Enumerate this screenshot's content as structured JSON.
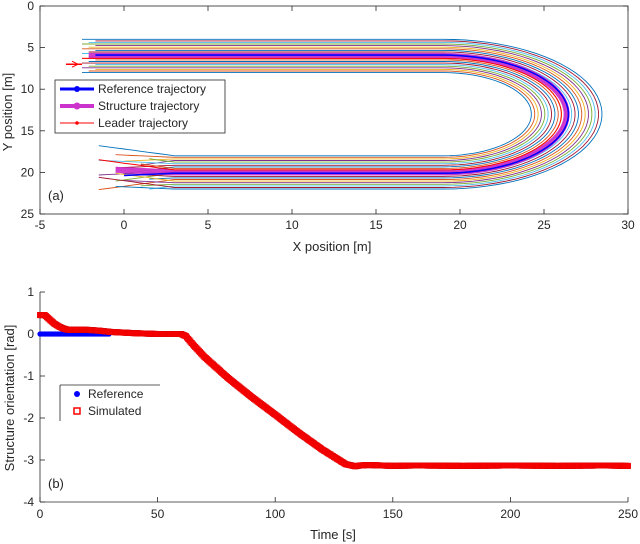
{
  "chart_data": [
    {
      "id": "top",
      "type": "line",
      "panel_label": "(a)",
      "xlabel": "X position [m]",
      "ylabel": "Y position [m]",
      "xlim": [
        -5,
        30
      ],
      "ylim": [
        0,
        25
      ],
      "y_reversed": true,
      "xticks": [
        -5,
        0,
        5,
        10,
        15,
        20,
        25,
        30
      ],
      "yticks": [
        0,
        5,
        10,
        15,
        20,
        25
      ],
      "legend_position": "left",
      "legend": [
        {
          "key": "reference",
          "label": "Reference trajectory",
          "color": "#0000ff"
        },
        {
          "key": "structure",
          "label": "Structure trajectory",
          "color": "#cc33cc"
        },
        {
          "key": "leader",
          "label": "Leader trajectory",
          "color": "#ff0000"
        }
      ],
      "track": {
        "x_left_top": -2.5,
        "x_left_bottom": 1,
        "x_turn_start": 19,
        "y_top": 6,
        "y_bottom": 20,
        "turn_center_y": 13,
        "turn_radius": 7
      },
      "band": {
        "count": 22,
        "half_width_m": 2.0
      },
      "band_colors": [
        "#0072bd",
        "#d95319",
        "#edb120",
        "#7e2f8e",
        "#77ac30",
        "#4dbeee",
        "#a2142f"
      ]
    },
    {
      "id": "bottom",
      "type": "scatter",
      "panel_label": "(b)",
      "xlabel": "Time [s]",
      "ylabel": "Structure orientation [rad]",
      "xlim": [
        0,
        250
      ],
      "ylim": [
        -4,
        1
      ],
      "xticks": [
        0,
        50,
        100,
        150,
        200,
        250
      ],
      "yticks": [
        1,
        0,
        -1,
        -2,
        -3,
        -4
      ],
      "legend_position": "left",
      "legend": [
        {
          "key": "reference",
          "label": "Reference",
          "color": "#0000ff"
        },
        {
          "key": "simulated",
          "label": "Simulated",
          "color": "#ff0000"
        }
      ],
      "series": [
        {
          "name": "Reference",
          "x": [
            0,
            5,
            10,
            15,
            20,
            25,
            30
          ],
          "y": [
            0,
            0,
            0,
            0,
            0,
            0,
            0
          ]
        },
        {
          "name": "Simulated",
          "x": [
            0,
            2,
            4,
            6,
            8,
            10,
            12,
            15,
            20,
            25,
            30,
            40,
            50,
            55,
            60,
            62,
            65,
            70,
            80,
            90,
            100,
            110,
            120,
            130,
            134,
            136,
            140,
            150,
            160,
            180,
            200,
            220,
            240,
            250
          ],
          "y": [
            0.45,
            0.45,
            0.35,
            0.25,
            0.18,
            0.13,
            0.1,
            0.1,
            0.1,
            0.08,
            0.05,
            0.02,
            0.0,
            0.0,
            0.0,
            -0.05,
            -0.25,
            -0.55,
            -1.05,
            -1.5,
            -1.92,
            -2.35,
            -2.75,
            -3.1,
            -3.15,
            -3.13,
            -3.12,
            -3.14,
            -3.13,
            -3.14,
            -3.13,
            -3.14,
            -3.13,
            -3.14
          ]
        }
      ]
    }
  ]
}
